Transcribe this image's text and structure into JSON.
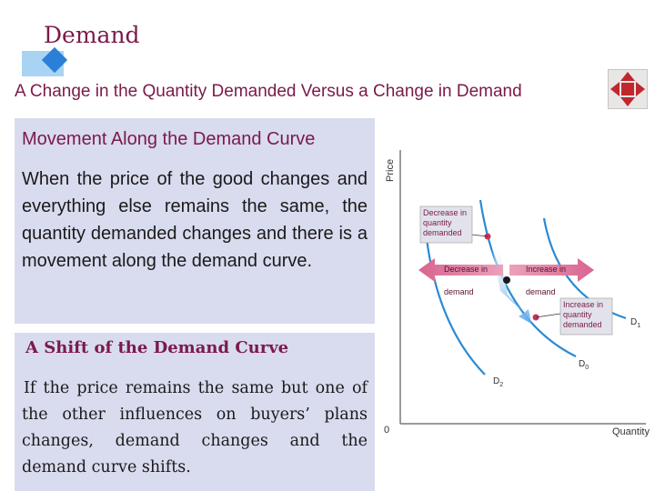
{
  "header": {
    "title": "Demand",
    "subtitle": "A Change in the Quantity Demanded Versus a Change in Demand"
  },
  "movement_box": {
    "heading": "Movement Along the Demand Curve",
    "body": "When the price of the good changes and everything else remains the same, the quantity demanded changes and there is a movement along the demand curve."
  },
  "shift_box": {
    "heading": "A Shift of the Demand Curve",
    "body": "If the price remains the same but one of the other influences on buyers’ plans changes, demand changes and the demand curve shifts."
  },
  "diagram": {
    "y_axis_label": "Price",
    "x_axis_label": "Quantity",
    "origin_label": "0",
    "curve_labels": {
      "d0": "D",
      "d0_sub": "0",
      "d1": "D",
      "d1_sub": "1",
      "d2": "D",
      "d2_sub": "2"
    },
    "callout_decrease_qd": [
      "Decrease in",
      "quantity",
      "demanded"
    ],
    "callout_increase_qd": [
      "Increase in",
      "quantity",
      "demanded"
    ],
    "arrow_decrease_demand": [
      "Decrease in",
      "demand"
    ],
    "arrow_increase_demand": [
      "Increase in",
      "demand"
    ],
    "colors": {
      "curve": "#2a8ad4",
      "arrow": "#d9648f",
      "point": "#c8325c",
      "callout_bg": "#e2e2ea"
    }
  },
  "icons": {
    "nav": "move-arrows-icon"
  }
}
